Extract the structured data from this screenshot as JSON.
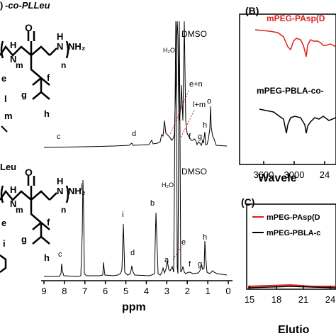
{
  "left": {
    "top_title": "-co-PLLeu",
    "top_title_prefix": ")",
    "bottom_title": "Leu",
    "struct_labels": {
      "m": "m",
      "n": "n",
      "nh2": "NH₂",
      "e": "e",
      "f": "f",
      "g": "g",
      "h": "h",
      "l": "l",
      "m2": "m",
      "i": "i"
    }
  },
  "nmr": {
    "solvent_labels": [
      "H₂O",
      "DMSO"
    ],
    "top_labels": {
      "c": "c",
      "d": "d",
      "en": "e+n",
      "lm": "l+m",
      "f": "f",
      "g": "g",
      "h": "h",
      "o": "o"
    },
    "bottom_labels": {
      "b": "b",
      "j": "j",
      "i": "i",
      "c": "c",
      "d": "d",
      "a": "a",
      "e": "e",
      "f": "f",
      "g": "g",
      "h": "h"
    },
    "xaxis": {
      "label": "ppm",
      "ticks": [
        "9",
        "8",
        "7",
        "6",
        "5",
        "4",
        "3",
        "2",
        "1",
        "0"
      ]
    }
  },
  "panel_b": {
    "tag": "(B)",
    "legend_top": "mPEG-PAsp(D",
    "legend_bottom": "mPEG-PBLA-co-",
    "ticks": [
      "3600",
      "3000",
      "24"
    ],
    "xlabel": "Wavele",
    "colors": {
      "top": "#e0201a",
      "bottom": "#000000"
    }
  },
  "panel_c": {
    "tag": "(C)",
    "legend_top": "mPEG-PAsp(D",
    "legend_bottom": "mPEG-PBLA-c",
    "ticks": [
      "15",
      "18",
      "21",
      "24"
    ],
    "xlabel": "Elutio",
    "colors": {
      "top": "#e0201a",
      "bottom": "#000000"
    }
  }
}
